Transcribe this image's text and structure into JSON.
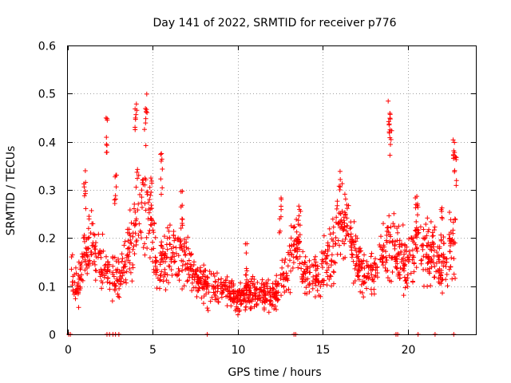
{
  "chart_data": {
    "type": "scatter",
    "title": "Day 141 of 2022, SRMTID for receiver p776",
    "xlabel": "GPS time / hours",
    "ylabel": "SRMTID / TECUs",
    "xlim": [
      0,
      24
    ],
    "ylim": [
      0,
      0.6
    ],
    "x_ticks": [
      0,
      5,
      10,
      15,
      20
    ],
    "x_tick_labels": [
      "0",
      "5",
      "10",
      "15",
      "20"
    ],
    "y_ticks": [
      0,
      0.1,
      0.2,
      0.3,
      0.4,
      0.5,
      0.6
    ],
    "y_tick_labels": [
      "0",
      "0.1",
      "0.2",
      "0.3",
      "0.4",
      "0.5",
      "0.6"
    ],
    "grid": true,
    "marker": "plus",
    "color": "#ff0000",
    "envelope": {
      "description": "approximate mean SRMTID level by hour",
      "x": [
        0.2,
        0.6,
        1.0,
        1.5,
        2.0,
        2.5,
        3.0,
        3.5,
        4.0,
        4.4,
        4.8,
        5.2,
        5.8,
        6.3,
        7.0,
        7.5,
        8.0,
        8.5,
        9.0,
        9.5,
        10.0,
        10.5,
        11.0,
        11.5,
        12.0,
        12.5,
        13.0,
        13.5,
        14.0,
        14.5,
        15.0,
        15.5,
        16.0,
        16.5,
        17.0,
        17.5,
        18.0,
        18.5,
        19.0,
        19.5,
        20.0,
        20.5,
        21.0,
        21.5,
        22.0,
        22.5,
        22.8
      ],
      "y": [
        0.12,
        0.1,
        0.16,
        0.18,
        0.15,
        0.13,
        0.11,
        0.16,
        0.22,
        0.3,
        0.25,
        0.14,
        0.16,
        0.17,
        0.15,
        0.12,
        0.1,
        0.1,
        0.09,
        0.09,
        0.07,
        0.09,
        0.08,
        0.08,
        0.08,
        0.1,
        0.14,
        0.2,
        0.12,
        0.12,
        0.14,
        0.17,
        0.24,
        0.22,
        0.15,
        0.12,
        0.13,
        0.16,
        0.2,
        0.16,
        0.14,
        0.2,
        0.18,
        0.16,
        0.14,
        0.18,
        0.2
      ]
    },
    "peaks": [
      {
        "x": 1.0,
        "y": 0.34
      },
      {
        "x": 2.3,
        "y": 0.46
      },
      {
        "x": 2.8,
        "y": 0.36
      },
      {
        "x": 4.0,
        "y": 0.49
      },
      {
        "x": 4.6,
        "y": 0.52
      },
      {
        "x": 4.9,
        "y": 0.33
      },
      {
        "x": 5.5,
        "y": 0.38
      },
      {
        "x": 6.7,
        "y": 0.3
      },
      {
        "x": 10.5,
        "y": 0.19
      },
      {
        "x": 12.5,
        "y": 0.29
      },
      {
        "x": 13.6,
        "y": 0.28
      },
      {
        "x": 16.0,
        "y": 0.34
      },
      {
        "x": 18.9,
        "y": 0.5
      },
      {
        "x": 19.0,
        "y": 0.46
      },
      {
        "x": 20.5,
        "y": 0.29
      },
      {
        "x": 22.0,
        "y": 0.27
      },
      {
        "x": 22.7,
        "y": 0.41
      },
      {
        "x": 22.8,
        "y": 0.39
      }
    ],
    "zero_points_x": [
      0.05,
      0.15,
      2.3,
      2.45,
      2.65,
      2.8,
      3.0,
      8.2,
      13.3,
      13.4,
      19.3,
      19.4,
      20.6,
      21.6,
      22.7
    ]
  }
}
